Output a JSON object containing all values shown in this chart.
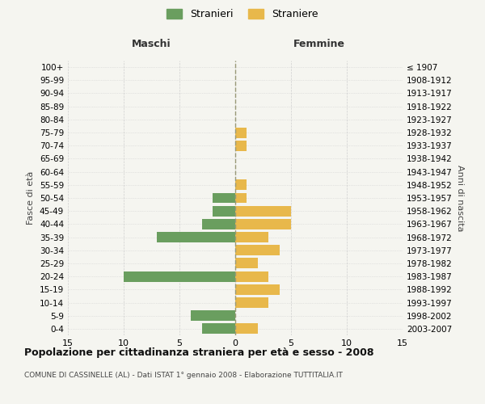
{
  "age_groups": [
    "100+",
    "95-99",
    "90-94",
    "85-89",
    "80-84",
    "75-79",
    "70-74",
    "65-69",
    "60-64",
    "55-59",
    "50-54",
    "45-49",
    "40-44",
    "35-39",
    "30-34",
    "25-29",
    "20-24",
    "15-19",
    "10-14",
    "5-9",
    "0-4"
  ],
  "birth_years": [
    "≤ 1907",
    "1908-1912",
    "1913-1917",
    "1918-1922",
    "1923-1927",
    "1928-1932",
    "1933-1937",
    "1938-1942",
    "1943-1947",
    "1948-1952",
    "1953-1957",
    "1958-1962",
    "1963-1967",
    "1968-1972",
    "1973-1977",
    "1978-1982",
    "1983-1987",
    "1988-1992",
    "1993-1997",
    "1998-2002",
    "2003-2007"
  ],
  "maschi": [
    0,
    0,
    0,
    0,
    0,
    0,
    0,
    0,
    0,
    0,
    2,
    2,
    3,
    7,
    0,
    0,
    10,
    0,
    0,
    4,
    3
  ],
  "femmine": [
    0,
    0,
    0,
    0,
    0,
    1,
    1,
    0,
    0,
    1,
    1,
    5,
    5,
    3,
    4,
    2,
    3,
    4,
    3,
    0,
    2
  ],
  "maschi_color": "#6a9e5f",
  "femmine_color": "#e8b84b",
  "background_color": "#f5f5f0",
  "grid_color": "#cccccc",
  "title": "Popolazione per cittadinanza straniera per età e sesso - 2008",
  "subtitle": "COMUNE DI CASSINELLE (AL) - Dati ISTAT 1° gennaio 2008 - Elaborazione TUTTITALIA.IT",
  "xlabel_left": "Maschi",
  "xlabel_right": "Femmine",
  "ylabel_left": "Fasce di età",
  "ylabel_right": "Anni di nascita",
  "legend_maschi": "Stranieri",
  "legend_femmine": "Straniere",
  "xlim": 15,
  "bar_height": 0.8
}
